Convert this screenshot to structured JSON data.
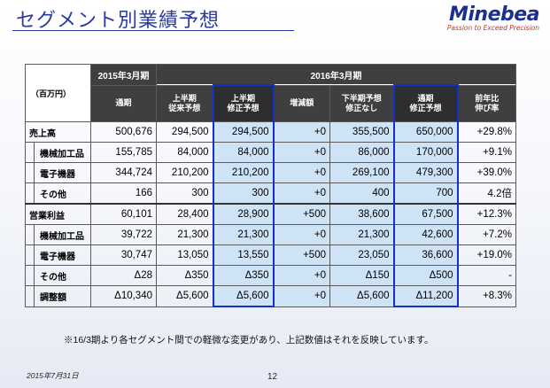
{
  "header": {
    "title": "セグメント別業績予想",
    "logo": "Minebea",
    "tagline": "Passion to Exceed Precision"
  },
  "table": {
    "unit": "（百万円）",
    "fy2015_label": "2015年3月期",
    "fy2016_label": "2016年3月期",
    "columns": [
      "通期",
      "上半期\n従来予想",
      "上半期\n修正予想",
      "増減額",
      "下半期予想\n修正なし",
      "通期\n修正予想",
      "前年比\n伸び率"
    ],
    "rows": [
      {
        "label": "売上高",
        "level": 1,
        "values": [
          "500,676",
          "294,500",
          "294,500",
          "+0",
          "355,500",
          "650,000",
          "+29.8%"
        ]
      },
      {
        "label": "機械加工品",
        "level": 2,
        "values": [
          "155,785",
          "84,000",
          "84,000",
          "+0",
          "86,000",
          "170,000",
          "+9.1%"
        ]
      },
      {
        "label": "電子機器",
        "level": 2,
        "values": [
          "344,724",
          "210,200",
          "210,200",
          "+0",
          "269,100",
          "479,300",
          "+39.0%"
        ]
      },
      {
        "label": "その他",
        "level": 2,
        "values": [
          "166",
          "300",
          "300",
          "+0",
          "400",
          "700",
          "4.2倍"
        ]
      },
      {
        "label": "営業利益",
        "level": 1,
        "values": [
          "60,101",
          "28,400",
          "28,900",
          "+500",
          "38,600",
          "67,500",
          "+12.3%"
        ]
      },
      {
        "label": "機械加工品",
        "level": 2,
        "values": [
          "39,722",
          "21,300",
          "21,300",
          "+0",
          "21,300",
          "42,600",
          "+7.2%"
        ]
      },
      {
        "label": "電子機器",
        "level": 2,
        "values": [
          "30,747",
          "13,050",
          "13,550",
          "+500",
          "23,050",
          "36,600",
          "+19.0%"
        ]
      },
      {
        "label": "その他",
        "level": 2,
        "values": [
          "Δ28",
          "Δ350",
          "Δ350",
          "+0",
          "Δ150",
          "Δ500",
          "-"
        ]
      },
      {
        "label": "調整額",
        "level": 2,
        "values": [
          "Δ10,340",
          "Δ5,600",
          "Δ5,600",
          "+0",
          "Δ5,600",
          "Δ11,200",
          "+8.3%"
        ]
      }
    ]
  },
  "note": "※16/3期より各セグメント間での軽微な変更があり、上記数値はそれを反映しています。",
  "footer": {
    "date": "2015年7月31日",
    "page": "12"
  }
}
